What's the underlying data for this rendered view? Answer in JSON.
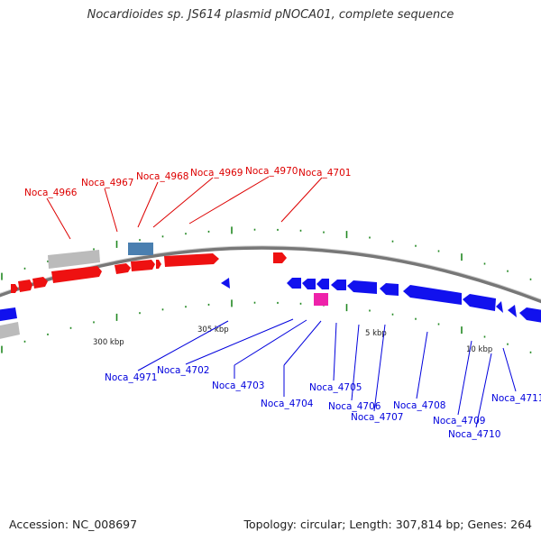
{
  "title": "Nocardioides sp. JS614 plasmid pNOCA01, complete sequence",
  "footer": {
    "accession": "Accession: NC_008697",
    "summary": "Topology: circular; Length: 307,814 bp; Genes: 264"
  },
  "colors": {
    "forward": "#ee1111",
    "reverse": "#1111ee",
    "gray": "#bbbbbb",
    "steel": "#4a7fb0",
    "magenta": "#ee22aa",
    "tick": "#228822",
    "backbone": "#777777"
  },
  "scale_labels": [
    "300 kbp",
    "305 kbp",
    "5 kbp",
    "10 kbp"
  ],
  "forward_labels": [
    "Noca_4966",
    "Noca_4967",
    "Noca_4968",
    "Noca_4969",
    "Noca_4970",
    "Noca_4701"
  ],
  "reverse_labels": [
    "Noca_4971",
    "Noca_4702",
    "Noca_4703",
    "Noca_4704",
    "Noca_4705",
    "Noca_4706",
    "Noca_4707",
    "Noca_4708",
    "Noca_4709",
    "Noca_4710",
    "Noca_4711"
  ]
}
